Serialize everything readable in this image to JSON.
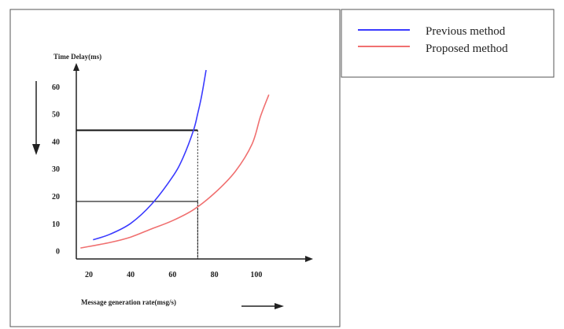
{
  "chart_data": {
    "type": "line",
    "xlabel": "Message generation rate(msg/s)",
    "ylabel": "Time Delay(ms)",
    "x_ticks": [
      "20",
      "40",
      "60",
      "80",
      "100"
    ],
    "y_ticks": [
      "0",
      "10",
      "20",
      "30",
      "40",
      "50",
      "60"
    ],
    "xlim": [
      14,
      126
    ],
    "ylim": [
      -3,
      68
    ],
    "grid": false,
    "legend_position": "top-right, outside plot",
    "series": [
      {
        "name": "Previous method",
        "color": "#3b3bff",
        "points": [
          [
            22,
            4
          ],
          [
            30,
            6
          ],
          [
            40,
            10
          ],
          [
            50,
            17
          ],
          [
            60,
            27
          ],
          [
            65,
            34
          ],
          [
            70,
            44
          ],
          [
            72,
            50
          ],
          [
            74,
            57
          ],
          [
            76,
            66
          ]
        ]
      },
      {
        "name": "Proposed method",
        "color": "#f07070",
        "points": [
          [
            16,
            1
          ],
          [
            30,
            3
          ],
          [
            40,
            5
          ],
          [
            50,
            8
          ],
          [
            60,
            11
          ],
          [
            70,
            15
          ],
          [
            80,
            21
          ],
          [
            90,
            29
          ],
          [
            98,
            39
          ],
          [
            102,
            49
          ],
          [
            106,
            57
          ]
        ]
      }
    ],
    "reference_lines": [
      {
        "x": 72,
        "y": 44
      },
      {
        "x": 72,
        "y": 18
      }
    ]
  }
}
